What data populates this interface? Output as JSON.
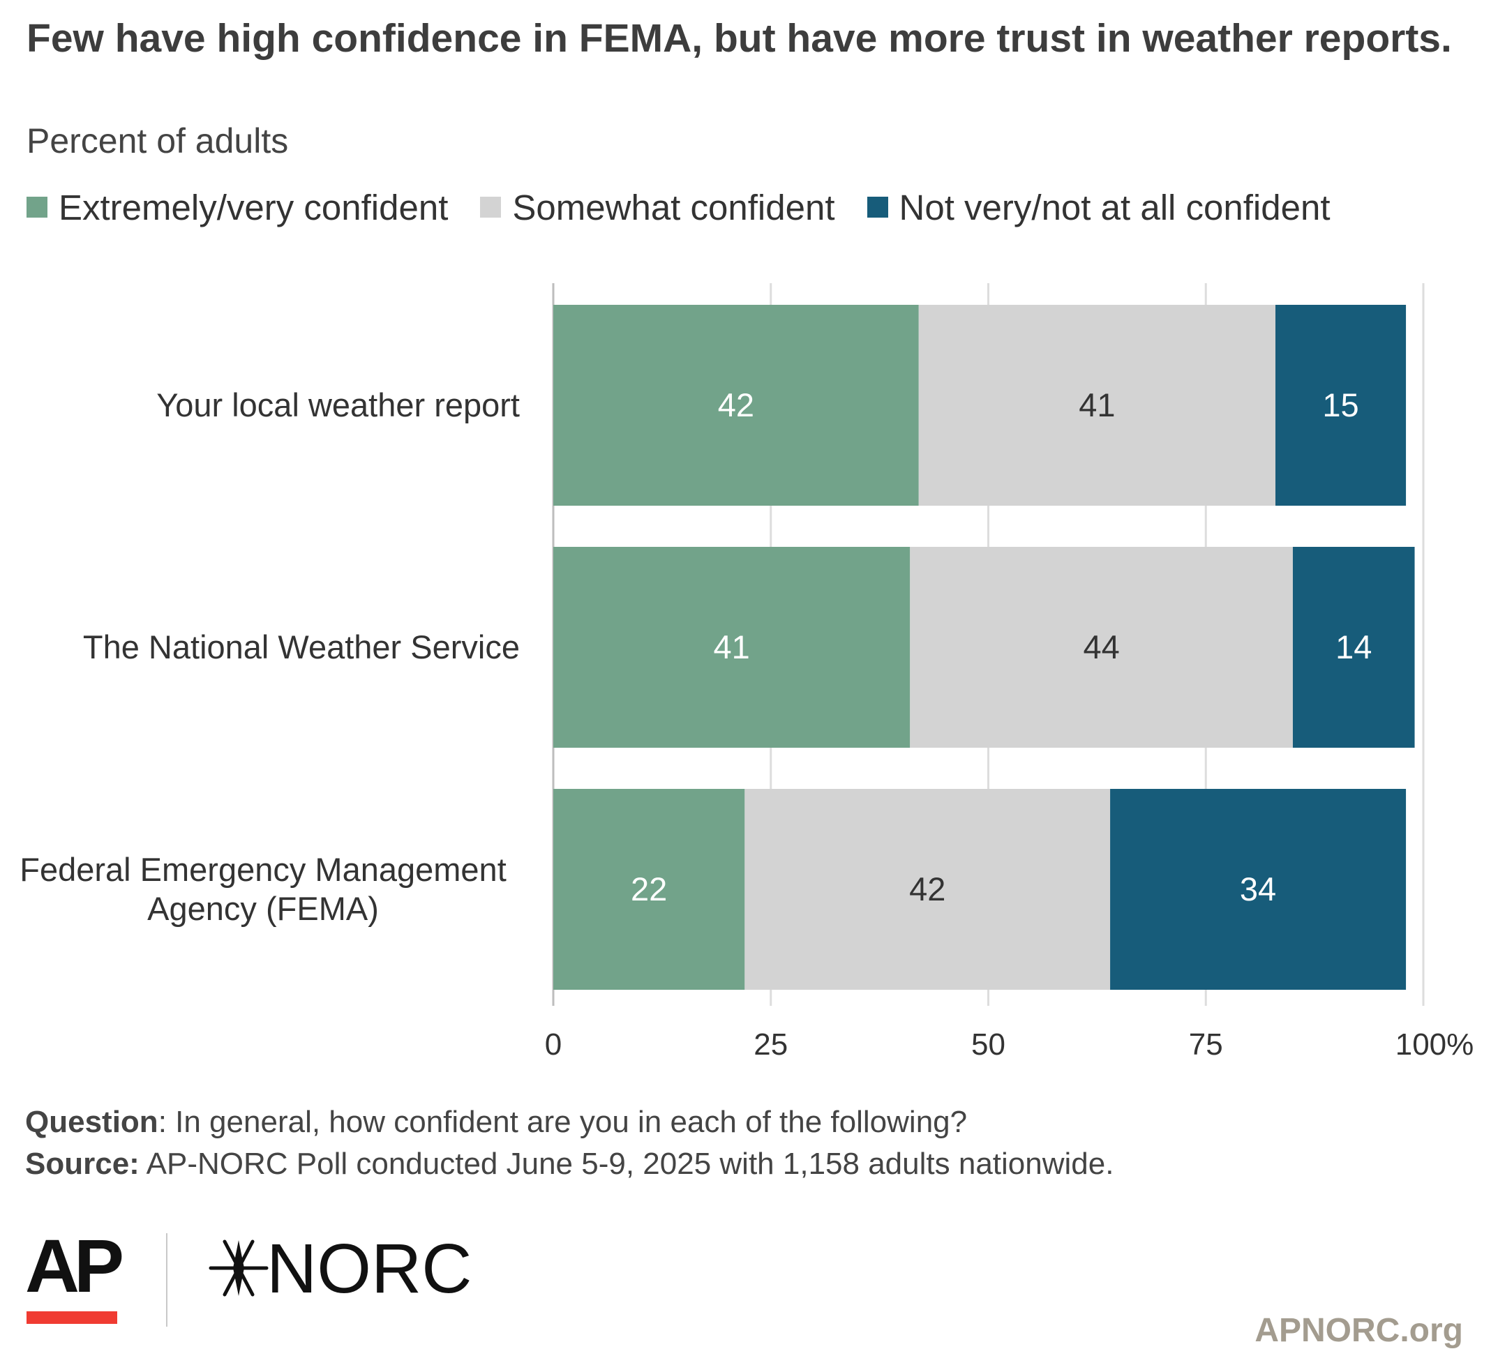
{
  "header": {
    "title": "Few have high confidence in FEMA, but have more trust in weather reports.",
    "subtitle": "Percent of adults"
  },
  "legend": {
    "items": [
      {
        "label": "Extremely/very confident",
        "color": "#72a38a"
      },
      {
        "label": "Somewhat confident",
        "color": "#d3d3d3"
      },
      {
        "label": "Not very/not at all confident",
        "color": "#175c7a"
      }
    ]
  },
  "chart_data": {
    "type": "bar",
    "orientation": "horizontal",
    "stacked": true,
    "categories": [
      [
        "Your local weather report"
      ],
      [
        "The National Weather Service"
      ],
      [
        "Federal Emergency Management",
        "Agency (FEMA)"
      ]
    ],
    "series": [
      {
        "name": "Extremely/very confident",
        "color": "#72a38a",
        "label_color": "#ffffff",
        "values": [
          42,
          41,
          22
        ]
      },
      {
        "name": "Somewhat confident",
        "color": "#d3d3d3",
        "label_color": "#333333",
        "values": [
          41,
          44,
          42
        ]
      },
      {
        "name": "Not very/not at all confident",
        "color": "#175c7a",
        "label_color": "#ffffff",
        "values": [
          15,
          14,
          34
        ]
      }
    ],
    "x_ticks": [
      "0",
      "25",
      "50",
      "75",
      "100%"
    ],
    "xlim": [
      0,
      100
    ],
    "grid": true,
    "legend_position": "top"
  },
  "footer": {
    "question_label": "Question",
    "question_text": ": In general, how confident are you in each of the following?",
    "source_label": "Source:",
    "source_text": " AP-NORC Poll conducted June 5-9, 2025 with 1,158 adults nationwide."
  },
  "logos": {
    "ap": "AP",
    "norc": "NORC",
    "ap_underline_color": "#f03b32"
  },
  "site_url": "APNORC.org"
}
